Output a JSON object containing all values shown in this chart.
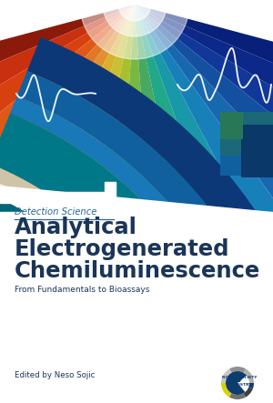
{
  "title_line1": "Analytical",
  "title_line2": "Electrogenerated",
  "title_line3": "Chemiluminescence",
  "subtitle": "From Fundamentals to Bioassays",
  "series": "Detection Science",
  "editor": "Edited by Neso Sojic",
  "title_color": "#1a3558",
  "series_color": "#2a6496",
  "subtitle_color": "#1a3558",
  "editor_color": "#1a3558",
  "bg_color": "#ffffff",
  "dark_blue": "#0d3d6e",
  "mid_blue": "#1464a0",
  "separator_color": "#2a6496",
  "stripe_colors_left": [
    "#c83010",
    "#e04818",
    "#e07020",
    "#e09a28",
    "#d8c030",
    "#b8c830",
    "#80c050",
    "#40a870",
    "#18a0a0",
    "#1880b8",
    "#1060b0",
    "#1040a0",
    "#0e3090"
  ],
  "stripe_colors_right": [
    "#0e3090",
    "#1040a0",
    "#1060b0",
    "#1880b8",
    "#18a0a0",
    "#40a870",
    "#80c050",
    "#b8c830",
    "#d8c030",
    "#e09a28",
    "#e07020",
    "#e04818",
    "#c83010"
  ],
  "band_teal": "#007a8a",
  "band_dark_teal": "#006070",
  "band_mid_blue": "#1060a0",
  "band_light": "#d8cbb0",
  "band_white": "#f0ede8",
  "rect_dark_teal": "#1a6060",
  "rect_mid_teal": "#157070",
  "rect_blue1": "#1060a0",
  "rect_blue2": "#0a4080",
  "rect_green": "#306050"
}
